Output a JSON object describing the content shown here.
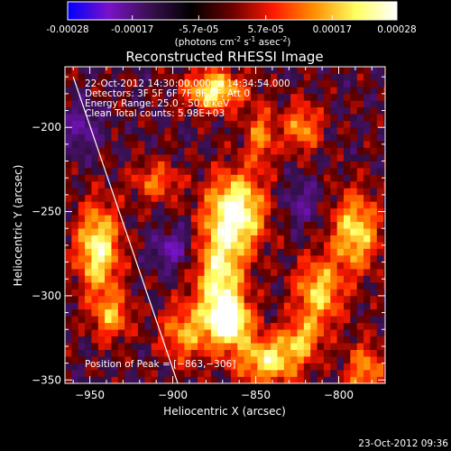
{
  "colorbar": {
    "ticks": [
      "-0.00028",
      "-0.00017",
      "-5.7e-05",
      "5.7e-05",
      "0.00017",
      "0.00028"
    ],
    "tick_values": [
      -0.00028,
      -0.00017,
      -5.7e-05,
      5.7e-05,
      0.00017,
      0.00028
    ],
    "range": [
      -0.00028,
      0.00028
    ],
    "unit_label": "(photons cm",
    "unit_exp1": "-2",
    "unit_mid": " s",
    "unit_exp2": "-1",
    "unit_mid2": " asec",
    "unit_exp3": "-2",
    "unit_end": ")",
    "colors": [
      "#0000ff",
      "#7a12c9",
      "#3a1050",
      "#000000",
      "#6b0000",
      "#ff1a00",
      "#ff9000",
      "#ffff60",
      "#ffffff"
    ]
  },
  "chart_data": {
    "type": "heatmap",
    "title": "Reconstructed RHESSI Image",
    "xlabel": "Heliocentric X (arcsec)",
    "ylabel": "Heliocentric Y (arcsec)",
    "xlim": [
      -965,
      -772
    ],
    "ylim": [
      -352,
      -164
    ],
    "xticks": [
      -950,
      -900,
      -850,
      -800
    ],
    "xtick_labels": [
      "−950",
      "−900",
      "−850",
      "−800"
    ],
    "yticks": [
      -350,
      -300,
      -250,
      -200
    ],
    "ytick_labels": [
      "−350",
      "−300",
      "−250",
      "−200"
    ],
    "info": [
      "22-Oct-2012 14:30:00.000 to 14:34:54.000",
      "Detectors: 3F 5F 6F 7F 8F 9F, Att 0",
      "Energy Range: 25.0 - 50.0 keV",
      "Clean    Total counts: 5.98E+03"
    ],
    "peak_label": "Position of Peak = [−863,−306]",
    "peak": [
      -863,
      -306
    ],
    "limb_line": [
      [
        -960,
        -170
      ],
      [
        -897,
        -352
      ]
    ],
    "blobs": [
      {
        "x": -945,
        "y": -272,
        "sx": 9,
        "sy": 18,
        "amp": 0.88
      },
      {
        "x": -937,
        "y": -312,
        "sx": 8,
        "sy": 10,
        "amp": 0.55
      },
      {
        "x": -862,
        "y": -250,
        "sx": 12,
        "sy": 16,
        "amp": 1.0
      },
      {
        "x": -872,
        "y": -290,
        "sx": 10,
        "sy": 20,
        "amp": 0.82
      },
      {
        "x": -866,
        "y": -315,
        "sx": 9,
        "sy": 10,
        "amp": 0.95
      },
      {
        "x": -842,
        "y": -338,
        "sx": 14,
        "sy": 10,
        "amp": 0.78
      },
      {
        "x": -893,
        "y": -322,
        "sx": 10,
        "sy": 12,
        "amp": 0.55
      },
      {
        "x": -875,
        "y": -178,
        "sx": 12,
        "sy": 8,
        "amp": 0.85
      },
      {
        "x": -847,
        "y": -205,
        "sx": 6,
        "sy": 12,
        "amp": 0.5
      },
      {
        "x": -822,
        "y": -200,
        "sx": 8,
        "sy": 10,
        "amp": 0.55
      },
      {
        "x": -790,
        "y": -262,
        "sx": 10,
        "sy": 16,
        "amp": 0.75
      },
      {
        "x": -812,
        "y": -298,
        "sx": 10,
        "sy": 14,
        "amp": 0.7
      },
      {
        "x": -784,
        "y": -345,
        "sx": 8,
        "sy": 12,
        "amp": 0.55
      },
      {
        "x": -910,
        "y": -232,
        "sx": 10,
        "sy": 8,
        "amp": 0.45
      },
      {
        "x": -822,
        "y": -325,
        "sx": 8,
        "sy": 8,
        "amp": 0.5
      },
      {
        "x": -900,
        "y": -272,
        "sx": 8,
        "sy": 8,
        "amp": -0.45
      },
      {
        "x": -955,
        "y": -200,
        "sx": 8,
        "sy": 10,
        "amp": -0.35
      },
      {
        "x": -822,
        "y": -245,
        "sx": 8,
        "sy": 10,
        "amp": -0.3
      }
    ],
    "grid": false,
    "legend": "none"
  },
  "footer": {
    "timestamp": "23-Oct-2012 09:36"
  }
}
